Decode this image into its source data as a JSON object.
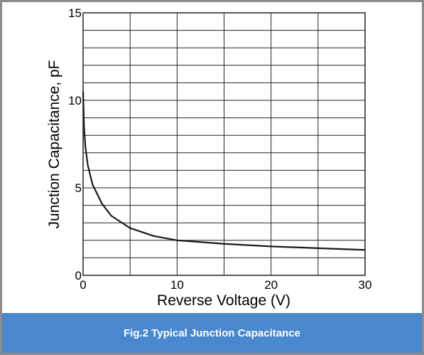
{
  "chart_data": {
    "type": "line",
    "x_label": "Reverse Voltage (V)",
    "y_label": "Junction Capacitance, pF",
    "caption": "Fig.2 Typical Junction Capacitance",
    "x": [
      0,
      0.1,
      0.25,
      0.5,
      1,
      2,
      3,
      5,
      7.5,
      10,
      15,
      20,
      25,
      30
    ],
    "series": [
      {
        "color": "#1a1a1a",
        "values": [
          10.5,
          8.5,
          7.3,
          6.3,
          5.2,
          4.1,
          3.4,
          2.7,
          2.25,
          2.0,
          1.8,
          1.65,
          1.55,
          1.45
        ]
      }
    ],
    "xlim": [
      0,
      30
    ],
    "xticks": [
      0,
      10,
      20,
      30
    ],
    "x_minor_grid": [
      5,
      15,
      25
    ],
    "ylim": [
      0,
      15
    ],
    "yticks": [
      0,
      5,
      10,
      15
    ],
    "y_minor_grid": [
      1,
      2,
      3,
      4,
      6,
      7,
      8,
      9,
      11,
      12,
      13,
      14
    ],
    "grid": true
  }
}
